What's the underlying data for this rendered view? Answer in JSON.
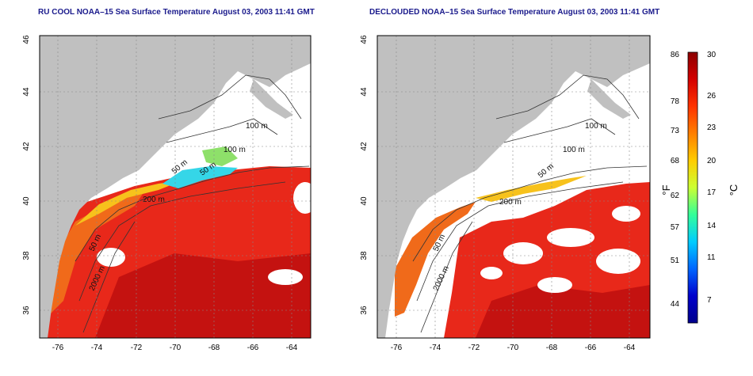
{
  "panels": [
    {
      "title": "RU COOL NOAA–15 Sea Surface Temperature August 03, 2003 11:41 GMT",
      "y_ticks": [
        "46",
        "44",
        "42",
        "40",
        "38",
        "36"
      ],
      "x_ticks": [
        "-76",
        "-74",
        "-72",
        "-70",
        "-68",
        "-66",
        "-64"
      ],
      "contour_labels": [
        "100 m",
        "100 m",
        "50 m",
        "50 m",
        "200 m",
        "50 m",
        "2000 m"
      ]
    },
    {
      "title": "DECLOUDED NOAA–15 Sea Surface Temperature August 03, 2003 11:41 GMT",
      "y_ticks": [
        "46",
        "44",
        "42",
        "40",
        "38",
        "36"
      ],
      "x_ticks": [
        "-76",
        "-74",
        "-72",
        "-70",
        "-68",
        "-66",
        "-64"
      ],
      "contour_labels": [
        "100 m",
        "100 m",
        "50 m",
        "200 m",
        "50 m",
        "2000 m"
      ]
    }
  ],
  "colorbar": {
    "fahrenheit_ticks": [
      "86",
      "78",
      "73",
      "68",
      "62",
      "57",
      "51",
      "44"
    ],
    "celsius_ticks": [
      "30",
      "26",
      "23",
      "20",
      "17",
      "14",
      "11",
      "7"
    ],
    "fahrenheit_unit": "°F",
    "celsius_unit": "°C",
    "gradient_colors": [
      "#8b0000",
      "#d40000",
      "#ff3300",
      "#ff7f00",
      "#ffcc00",
      "#ccff33",
      "#33ff99",
      "#00ccff",
      "#0066ff",
      "#0000cc",
      "#00008b"
    ]
  },
  "map_colors": {
    "land": "#c0c0c0",
    "clouds": "#ffffff",
    "warm_sea": "#e8281a",
    "hot_sea": "#c41210",
    "shelf_sea": "#f06a1a",
    "cool_sea": "#f7c21c",
    "cold_sea": "#35d6e8"
  }
}
